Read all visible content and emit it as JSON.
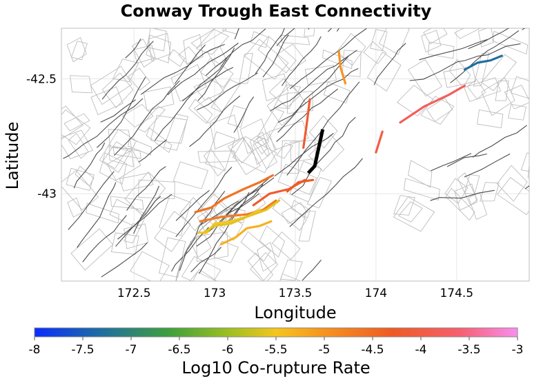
{
  "chart_data": {
    "type": "map",
    "title": "Conway Trough East Connectivity",
    "xlabel": "Longitude",
    "ylabel": "Latitude",
    "xlim": [
      172.05,
      174.95
    ],
    "ylim": [
      -43.38,
      -42.28
    ],
    "x_ticks": [
      "172.5",
      "173",
      "173.5",
      "174",
      "174.5"
    ],
    "x_tick_values": [
      172.5,
      173.0,
      173.5,
      174.0,
      174.5
    ],
    "y_ticks": [
      "-42.5",
      "-43"
    ],
    "y_tick_values": [
      -42.5,
      -43.0
    ],
    "grid": true,
    "colorbar": {
      "label": "Log10 Co-rupture Rate",
      "range": [
        -8,
        -3
      ],
      "ticks": [
        "-8",
        "-7.5",
        "-7",
        "-6.5",
        "-6",
        "-5.5",
        "-5",
        "-4.5",
        "-4",
        "-3.5",
        "-3"
      ],
      "tick_values": [
        -8,
        -7.5,
        -7,
        -6.5,
        -6,
        -5.5,
        -5,
        -4.5,
        -4,
        -3.5,
        -3
      ],
      "stops": [
        {
          "value": -8,
          "color": "#0a2cff"
        },
        {
          "value": -7.3,
          "color": "#1e6f9f"
        },
        {
          "value": -6.6,
          "color": "#3fa03a"
        },
        {
          "value": -6.0,
          "color": "#9bbf22"
        },
        {
          "value": -5.5,
          "color": "#f5c51e"
        },
        {
          "value": -5.0,
          "color": "#f7931e"
        },
        {
          "value": -4.3,
          "color": "#ee5a24"
        },
        {
          "value": -3.6,
          "color": "#f75f6e"
        },
        {
          "value": -3,
          "color": "#f88ef0"
        }
      ]
    },
    "target_fault": {
      "name": "Conway Trough East",
      "color": "#000000",
      "lon": [
        173.58,
        173.62,
        173.67
      ],
      "lat": [
        -42.91,
        -42.88,
        -42.72
      ]
    },
    "corupture_faults": [
      {
        "lon": [
          174.55,
          174.63,
          174.71,
          174.78
        ],
        "lat": [
          -42.46,
          -42.43,
          -42.42,
          -42.4
        ],
        "log10_rate": -7.3
      },
      {
        "lon": [
          174.15,
          174.3,
          174.45,
          174.55
        ],
        "lat": [
          -42.69,
          -42.62,
          -42.57,
          -42.53
        ],
        "log10_rate": -3.8
      },
      {
        "lon": [
          174.0,
          174.04
        ],
        "lat": [
          -42.82,
          -42.73
        ],
        "log10_rate": -4.0
      },
      {
        "lon": [
          173.55,
          173.57,
          173.59
        ],
        "lat": [
          -42.8,
          -42.7,
          -42.59
        ],
        "log10_rate": -4.2
      },
      {
        "lon": [
          173.77,
          173.78,
          173.81
        ],
        "lat": [
          -42.38,
          -42.45,
          -42.52
        ],
        "log10_rate": -5.0
      },
      {
        "lon": [
          173.24,
          173.34,
          173.46,
          173.56
        ],
        "lat": [
          -43.05,
          -43.0,
          -42.98,
          -42.94
        ],
        "log10_rate": -4.2
      },
      {
        "lon": [
          173.45,
          173.52,
          173.61
        ],
        "lat": [
          -42.99,
          -42.95,
          -42.94
        ],
        "log10_rate": -4.3
      },
      {
        "lon": [
          172.88,
          172.98,
          173.06,
          173.18,
          173.28,
          173.36
        ],
        "lat": [
          -43.08,
          -43.06,
          -43.02,
          -42.98,
          -42.95,
          -42.92
        ],
        "log10_rate": -4.6
      },
      {
        "lon": [
          172.91,
          173.05,
          173.2,
          173.3,
          173.38
        ],
        "lat": [
          -43.12,
          -43.1,
          -43.09,
          -43.07,
          -43.03
        ],
        "log10_rate": -4.7
      },
      {
        "lon": [
          172.9,
          172.95,
          173.0,
          173.1,
          173.2,
          173.28
        ],
        "lat": [
          -43.17,
          -43.17,
          -43.13,
          -43.12,
          -43.1,
          -43.07
        ],
        "log10_rate": -5.5
      },
      {
        "lon": [
          172.93,
          173.0,
          173.1,
          173.2,
          173.32,
          173.4
        ],
        "lat": [
          -43.17,
          -43.14,
          -43.13,
          -43.1,
          -43.07,
          -43.03
        ],
        "log10_rate": -5.6
      },
      {
        "lon": [
          173.04,
          173.13,
          173.2,
          173.28,
          173.35
        ],
        "lat": [
          -43.22,
          -43.19,
          -43.15,
          -43.14,
          -43.12
        ],
        "log10_rate": -5.3
      }
    ],
    "background": "regional fault network and rupture-plane outlines (grey)"
  }
}
